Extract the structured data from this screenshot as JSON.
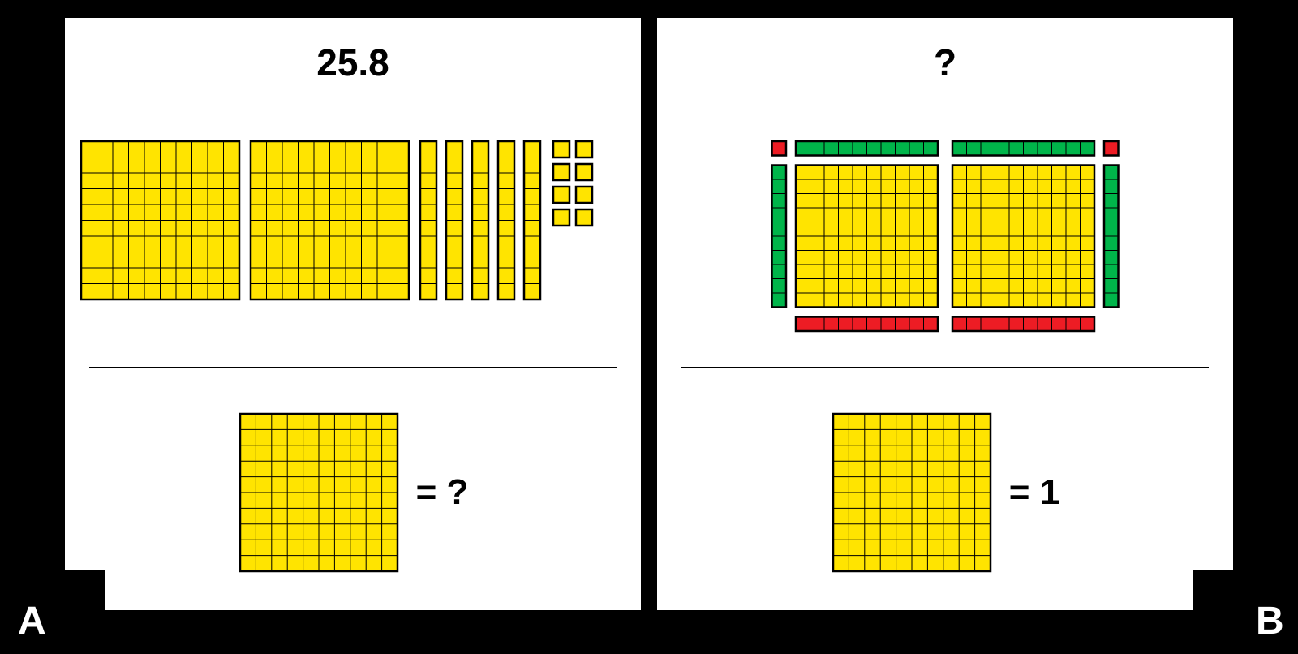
{
  "colors": {
    "background": "#000000",
    "panel_bg": "#ffffff",
    "yellow_fill": "#ffe400",
    "green_fill": "#00b54a",
    "red_fill": "#ed1c24",
    "stroke": "#000000",
    "text": "#000000",
    "label_text": "#ffffff"
  },
  "labels": {
    "a": "A",
    "b": "B"
  },
  "panel_a": {
    "title": "25.8",
    "blocks": {
      "hundred_flats": 2,
      "ten_rods": 5,
      "unit_cubes": 8,
      "flat_grid": 10,
      "rod_cells": 10
    },
    "legend": {
      "flat_grid": 10,
      "text": "= ?"
    }
  },
  "panel_b": {
    "title": "?",
    "layout": {
      "yellow_flats": 2,
      "flat_grid": 10,
      "top_green_rods": 2,
      "top_red_units_left": 1,
      "top_red_units_right": 1,
      "left_green_rod": 1,
      "right_green_rod": 1,
      "bottom_red_rods": 2,
      "rod_cells": 10
    },
    "legend": {
      "flat_grid": 10,
      "text": "= 1"
    }
  },
  "styling": {
    "title_fontsize": 46,
    "legend_fontsize": 44,
    "label_fontsize": 48,
    "stroke_thin": 1,
    "stroke_thick": 2.5
  }
}
